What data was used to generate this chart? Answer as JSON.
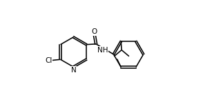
{
  "background": "#ffffff",
  "line_color": "#000000",
  "figsize": [
    2.94,
    1.51
  ],
  "dpi": 100,
  "font_size": 7.5,
  "lw": 1.15,
  "dbo": 0.007,
  "xlim": [
    -0.05,
    1.05
  ],
  "ylim": [
    0.05,
    0.95
  ]
}
